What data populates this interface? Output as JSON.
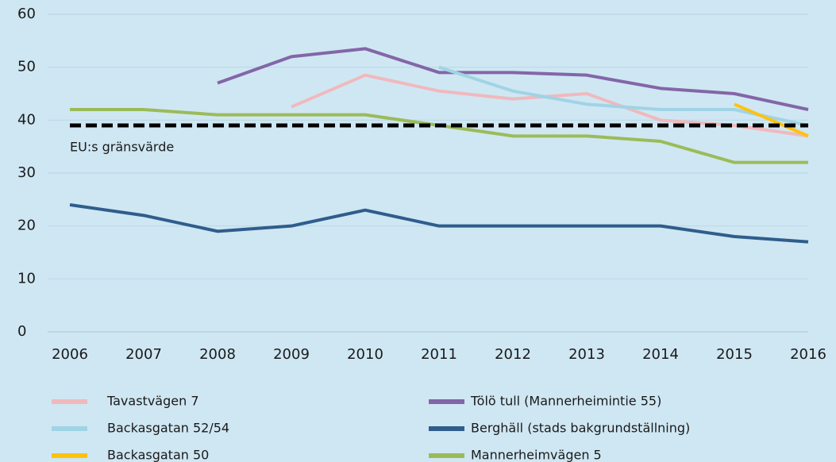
{
  "chart_data": {
    "type": "line",
    "x": [
      2006,
      2007,
      2008,
      2009,
      2010,
      2011,
      2012,
      2013,
      2014,
      2015,
      2016
    ],
    "xlim": [
      2006,
      2016
    ],
    "xticks": [
      2006,
      2007,
      2008,
      2009,
      2010,
      2011,
      2012,
      2013,
      2014,
      2015,
      2016
    ],
    "ylim": [
      0,
      60
    ],
    "yticks": [
      0,
      10,
      20,
      30,
      40,
      50,
      60
    ],
    "grid": true,
    "legend": "bottom",
    "reference_line": {
      "value": 39,
      "label": "EU:s gränsvärde",
      "color": "#000000"
    },
    "series": [
      {
        "name": "Tavastvägen 7",
        "color": "#f0b9bd",
        "values": [
          null,
          null,
          null,
          42.5,
          48.5,
          45.5,
          44,
          45,
          40,
          39,
          37
        ]
      },
      {
        "name": "Tölö tull (Mannerheimintie 55)",
        "color": "#8366a8",
        "values": [
          null,
          null,
          47,
          52,
          53.5,
          49,
          49,
          48.5,
          46,
          45,
          42
        ]
      },
      {
        "name": "Backasgatan 52/54",
        "color": "#9fd4e4",
        "values": [
          null,
          null,
          null,
          null,
          null,
          50,
          45.5,
          43,
          42,
          42,
          39
        ]
      },
      {
        "name": "Berghäll (stads bakgrundställning)",
        "color": "#2f5d8c",
        "values": [
          24,
          22,
          19,
          20,
          23,
          20,
          20,
          20,
          20,
          18,
          17
        ]
      },
      {
        "name": "Backasgatan 50",
        "color": "#ffc20e",
        "values": [
          null,
          null,
          null,
          null,
          null,
          null,
          null,
          null,
          null,
          43,
          37
        ]
      },
      {
        "name": "Mannerheimvägen 5",
        "color": "#9bbb59",
        "values": [
          42,
          42,
          41,
          41,
          41,
          39,
          37,
          37,
          36,
          32,
          32
        ]
      }
    ]
  }
}
